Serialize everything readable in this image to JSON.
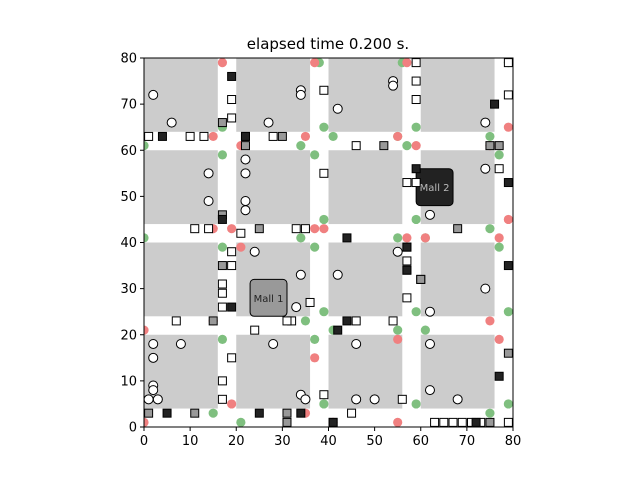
{
  "chart_data": {
    "type": "scatter",
    "title": "elapsed time 0.200 s.",
    "xlim": [
      0,
      80
    ],
    "ylim": [
      0,
      80
    ],
    "xticks": [
      "0",
      "10",
      "20",
      "30",
      "40",
      "50",
      "60",
      "70",
      "80"
    ],
    "yticks": [
      "0",
      "10",
      "20",
      "30",
      "40",
      "50",
      "60",
      "70",
      "80"
    ],
    "grid": false,
    "colors": {
      "block": "#cccccc",
      "green": "#7fbf7f",
      "red": "#f08080",
      "mall1": "#999999",
      "mall2": "#222222",
      "agent_edge": "#000000"
    },
    "blocks": [
      {
        "x0": 0,
        "x1": 16,
        "y0": 4,
        "y1": 20
      },
      {
        "x0": 20,
        "x1": 36,
        "y0": 4,
        "y1": 20
      },
      {
        "x0": 40,
        "x1": 56,
        "y0": 4,
        "y1": 20
      },
      {
        "x0": 60,
        "x1": 76,
        "y0": 4,
        "y1": 20
      },
      {
        "x0": 0,
        "x1": 16,
        "y0": 24,
        "y1": 40
      },
      {
        "x0": 20,
        "x1": 36,
        "y0": 24,
        "y1": 40
      },
      {
        "x0": 40,
        "x1": 56,
        "y0": 24,
        "y1": 40
      },
      {
        "x0": 60,
        "x1": 76,
        "y0": 24,
        "y1": 40
      },
      {
        "x0": 0,
        "x1": 16,
        "y0": 44,
        "y1": 60
      },
      {
        "x0": 20,
        "x1": 36,
        "y0": 44,
        "y1": 60
      },
      {
        "x0": 40,
        "x1": 56,
        "y0": 44,
        "y1": 60
      },
      {
        "x0": 60,
        "x1": 76,
        "y0": 44,
        "y1": 60
      },
      {
        "x0": 0,
        "x1": 16,
        "y0": 64,
        "y1": 80
      },
      {
        "x0": 20,
        "x1": 36,
        "y0": 64,
        "y1": 80
      },
      {
        "x0": 40,
        "x1": 56,
        "y0": 64,
        "y1": 80
      },
      {
        "x0": 60,
        "x1": 76,
        "y0": 64,
        "y1": 80
      }
    ],
    "malls": [
      {
        "label": "Mall 1",
        "x": 27,
        "y": 28,
        "w": 8,
        "h": 8,
        "color": "#999999"
      },
      {
        "label": "Mall 2",
        "x": 63,
        "y": 52,
        "w": 8,
        "h": 8,
        "color": "#222222"
      }
    ],
    "lights": {
      "green": [
        [
          0,
          61
        ],
        [
          0,
          41
        ],
        [
          17,
          59
        ],
        [
          17,
          39
        ],
        [
          17,
          19
        ],
        [
          15,
          3
        ],
        [
          21,
          1
        ],
        [
          34,
          61
        ],
        [
          34,
          41
        ],
        [
          37,
          59
        ],
        [
          37,
          39
        ],
        [
          37,
          19
        ],
        [
          38,
          79
        ],
        [
          39,
          65
        ],
        [
          39,
          45
        ],
        [
          39,
          25
        ],
        [
          39,
          5
        ],
        [
          41,
          21
        ],
        [
          41,
          63
        ],
        [
          57,
          61
        ],
        [
          55,
          41
        ],
        [
          55,
          21
        ],
        [
          56,
          79
        ],
        [
          59,
          65
        ],
        [
          59,
          45
        ],
        [
          59,
          25
        ],
        [
          59,
          5
        ],
        [
          61,
          21
        ],
        [
          61,
          41
        ],
        [
          75,
          3
        ],
        [
          75,
          63
        ],
        [
          75,
          43
        ],
        [
          77,
          59
        ],
        [
          77,
          39
        ],
        [
          79,
          79
        ],
        [
          79,
          25
        ],
        [
          79,
          5
        ],
        [
          17,
          65
        ],
        [
          35,
          23
        ],
        [
          55,
          63
        ]
      ],
      "red": [
        [
          0,
          21
        ],
        [
          0,
          1
        ],
        [
          17,
          79
        ],
        [
          15,
          63
        ],
        [
          15,
          43
        ],
        [
          15,
          23
        ],
        [
          19,
          5
        ],
        [
          19,
          43
        ],
        [
          21,
          39
        ],
        [
          35,
          63
        ],
        [
          35,
          3
        ],
        [
          37,
          79
        ],
        [
          37,
          43
        ],
        [
          37,
          15
        ],
        [
          39,
          43
        ],
        [
          41,
          1
        ],
        [
          55,
          63
        ],
        [
          57,
          41
        ],
        [
          55,
          1
        ],
        [
          57,
          79
        ],
        [
          59,
          61
        ],
        [
          61,
          41
        ],
        [
          75,
          61
        ],
        [
          75,
          23
        ],
        [
          77,
          41
        ],
        [
          77,
          19
        ],
        [
          79,
          65
        ],
        [
          79,
          45
        ],
        [
          21,
          61
        ],
        [
          55,
          19
        ]
      ]
    },
    "circles": [
      [
        2,
        72
      ],
      [
        6,
        66
      ],
      [
        14,
        55
      ],
      [
        14,
        49
      ],
      [
        22,
        58
      ],
      [
        22,
        55
      ],
      [
        22,
        49
      ],
      [
        22,
        47
      ],
      [
        24,
        38
      ],
      [
        27,
        66
      ],
      [
        34,
        73
      ],
      [
        34,
        72
      ],
      [
        42,
        69
      ],
      [
        34,
        33
      ],
      [
        33,
        26
      ],
      [
        42,
        33
      ],
      [
        2,
        18
      ],
      [
        2,
        15
      ],
      [
        2,
        9
      ],
      [
        2,
        8
      ],
      [
        3,
        6
      ],
      [
        1,
        6
      ],
      [
        8,
        18
      ],
      [
        28,
        18
      ],
      [
        34,
        7
      ],
      [
        35,
        6
      ],
      [
        46,
        18
      ],
      [
        46,
        6
      ],
      [
        50,
        6
      ],
      [
        55,
        38
      ],
      [
        62,
        46
      ],
      [
        62,
        25
      ],
      [
        62,
        18
      ],
      [
        62,
        8
      ],
      [
        68,
        6
      ],
      [
        74,
        66
      ],
      [
        74,
        56
      ],
      [
        74,
        30
      ],
      [
        54,
        75
      ],
      [
        54,
        74
      ]
    ],
    "squares_white": [
      [
        1,
        63
      ],
      [
        10,
        63
      ],
      [
        13,
        63
      ],
      [
        19,
        71
      ],
      [
        19,
        67
      ],
      [
        22,
        63
      ],
      [
        28,
        63
      ],
      [
        39,
        73
      ],
      [
        39,
        55
      ],
      [
        46,
        61
      ],
      [
        57,
        53
      ],
      [
        59,
        79
      ],
      [
        59,
        75
      ],
      [
        59,
        71
      ],
      [
        77,
        56
      ],
      [
        79,
        79
      ],
      [
        79,
        72
      ],
      [
        11,
        43
      ],
      [
        14,
        43
      ],
      [
        19,
        38
      ],
      [
        19,
        35
      ],
      [
        17,
        31
      ],
      [
        17,
        29
      ],
      [
        17,
        26
      ],
      [
        21,
        42
      ],
      [
        33,
        43
      ],
      [
        32,
        23
      ],
      [
        35,
        43
      ],
      [
        36,
        27
      ],
      [
        46,
        23
      ],
      [
        54,
        23
      ],
      [
        57,
        28
      ],
      [
        57,
        36
      ],
      [
        60,
        32
      ],
      [
        7,
        23
      ],
      [
        19,
        15
      ],
      [
        17,
        10
      ],
      [
        17,
        6
      ],
      [
        24,
        21
      ],
      [
        31,
        23
      ],
      [
        39,
        7
      ],
      [
        45,
        3
      ],
      [
        56,
        6
      ],
      [
        63,
        1
      ],
      [
        65,
        1
      ],
      [
        67,
        1
      ],
      [
        69,
        1
      ],
      [
        71,
        1
      ],
      [
        73,
        1
      ],
      [
        79,
        1
      ],
      [
        59,
        53
      ]
    ],
    "squares_gray": [
      [
        17,
        66
      ],
      [
        22,
        61
      ],
      [
        30,
        63
      ],
      [
        52,
        61
      ],
      [
        17,
        46
      ],
      [
        17,
        35
      ],
      [
        25,
        43
      ],
      [
        57,
        34
      ],
      [
        60,
        32
      ],
      [
        68,
        43
      ],
      [
        15,
        23
      ],
      [
        57,
        39
      ],
      [
        31,
        3
      ],
      [
        31,
        1
      ],
      [
        11,
        3
      ],
      [
        1,
        3
      ],
      [
        75,
        61
      ],
      [
        77,
        61
      ],
      [
        79,
        16
      ],
      [
        41,
        1
      ],
      [
        75,
        1
      ]
    ],
    "squares_black": [
      [
        4,
        63
      ],
      [
        19,
        76
      ],
      [
        22,
        63
      ],
      [
        17,
        45
      ],
      [
        59,
        56
      ],
      [
        76,
        70
      ],
      [
        79,
        53
      ],
      [
        44,
        41
      ],
      [
        57,
        39
      ],
      [
        57,
        34
      ],
      [
        79,
        35
      ],
      [
        19,
        26
      ],
      [
        44,
        23
      ],
      [
        42,
        21
      ],
      [
        25,
        3
      ],
      [
        34,
        3
      ],
      [
        5,
        3
      ],
      [
        41,
        1
      ],
      [
        72,
        1
      ],
      [
        77,
        11
      ]
    ]
  }
}
